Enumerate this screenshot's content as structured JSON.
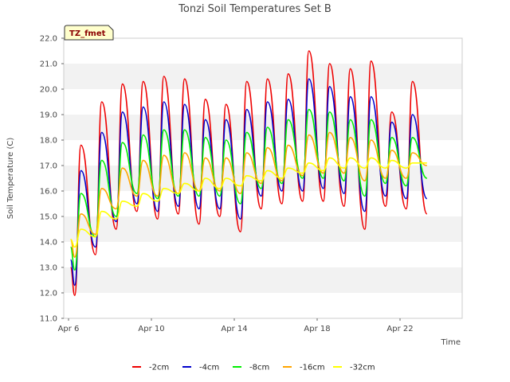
{
  "chart_data": {
    "type": "line",
    "title": "Tonzi Soil Temperatures Set B",
    "xlabel": "Time",
    "ylabel": "Soil Temperature (C)",
    "badge": "TZ_fmet",
    "xlim": [
      6,
      24
    ],
    "ylim": [
      11.0,
      22.0
    ],
    "y_ticks": [
      11,
      12,
      13,
      14,
      15,
      16,
      17,
      18,
      19,
      20,
      21,
      22
    ],
    "y_tick_labels": [
      "11.0",
      "12.0",
      "13.0",
      "14.0",
      "15.0",
      "16.0",
      "17.0",
      "18.0",
      "19.0",
      "20.0",
      "21.0",
      "22.0"
    ],
    "x_ticks": [
      6,
      10,
      14,
      18,
      22
    ],
    "x_tick_labels": [
      "Apr 6",
      "Apr 10",
      "Apr 14",
      "Apr 18",
      "Apr 22"
    ],
    "grid": "horizontal bands",
    "legend_position": "bottom",
    "peaks_x": [
      6.6,
      7.6,
      8.6,
      9.6,
      10.6,
      11.6,
      12.6,
      13.6,
      14.6,
      15.6,
      16.6,
      17.6,
      18.6,
      19.6,
      20.6,
      21.6,
      22.6
    ],
    "troughs_x": [
      6.3,
      7.3,
      8.3,
      9.3,
      10.3,
      11.3,
      12.3,
      13.3,
      14.3,
      15.3,
      16.3,
      17.3,
      18.3,
      19.3,
      20.3,
      21.3,
      22.3
    ],
    "series": [
      {
        "name": "-2cm",
        "color": "#ee0000",
        "start": [
          6.1,
          13.0
        ],
        "end": [
          23.3,
          15.1
        ],
        "peaks": [
          17.8,
          19.5,
          20.2,
          20.3,
          20.5,
          20.4,
          19.6,
          19.4,
          20.3,
          20.4,
          20.6,
          21.5,
          21.0,
          20.8,
          21.1,
          19.1,
          20.3
        ],
        "troughs": [
          11.9,
          13.5,
          14.5,
          15.2,
          14.9,
          15.1,
          14.7,
          15.0,
          14.4,
          15.3,
          15.5,
          15.6,
          15.6,
          15.4,
          14.5,
          15.4,
          15.3
        ]
      },
      {
        "name": "-4cm",
        "color": "#0000cc",
        "start": [
          6.1,
          13.3
        ],
        "end": [
          23.3,
          15.7
        ],
        "peaks": [
          16.8,
          18.3,
          19.1,
          19.3,
          19.5,
          19.4,
          18.8,
          18.8,
          19.2,
          19.5,
          19.6,
          20.4,
          20.1,
          19.7,
          19.7,
          18.7,
          19.0
        ],
        "troughs": [
          12.3,
          13.8,
          14.8,
          15.5,
          15.2,
          15.4,
          15.3,
          15.3,
          14.9,
          15.8,
          16.0,
          16.0,
          16.1,
          15.9,
          15.2,
          15.8,
          15.7
        ]
      },
      {
        "name": "-8cm",
        "color": "#00ee00",
        "start": [
          6.1,
          13.8
        ],
        "end": [
          23.3,
          16.5
        ],
        "peaks": [
          15.9,
          17.2,
          17.9,
          18.2,
          18.4,
          18.4,
          18.1,
          18.0,
          18.3,
          18.5,
          18.8,
          19.2,
          19.1,
          18.8,
          18.8,
          18.1,
          18.1
        ],
        "troughs": [
          12.9,
          14.2,
          15.0,
          15.9,
          15.7,
          15.8,
          15.8,
          15.8,
          15.5,
          16.1,
          16.3,
          16.5,
          16.5,
          16.4,
          15.8,
          16.3,
          16.2
        ]
      },
      {
        "name": "-16cm",
        "color": "#ffa500",
        "start": [
          6.1,
          14.1
        ],
        "end": [
          23.3,
          17.0
        ],
        "peaks": [
          15.1,
          16.1,
          16.9,
          17.2,
          17.4,
          17.5,
          17.3,
          17.3,
          17.5,
          17.7,
          17.8,
          18.2,
          18.3,
          18.1,
          18.0,
          17.6,
          17.5
        ],
        "troughs": [
          13.4,
          14.3,
          15.3,
          15.8,
          15.8,
          15.9,
          16.0,
          16.0,
          15.9,
          16.3,
          16.4,
          16.6,
          16.7,
          16.7,
          16.4,
          16.5,
          16.5
        ]
      },
      {
        "name": "-32cm",
        "color": "#ffff00",
        "start": [
          6.1,
          14.1
        ],
        "end": [
          23.3,
          17.1
        ],
        "peaks": [
          14.5,
          15.2,
          15.6,
          15.9,
          16.1,
          16.3,
          16.5,
          16.5,
          16.6,
          16.8,
          16.9,
          17.1,
          17.3,
          17.3,
          17.3,
          17.2,
          17.1
        ],
        "troughs": [
          13.8,
          14.2,
          14.9,
          15.4,
          15.6,
          15.9,
          16.0,
          16.1,
          16.2,
          16.4,
          16.5,
          16.7,
          16.8,
          16.9,
          16.9,
          16.9,
          16.9
        ]
      }
    ]
  }
}
